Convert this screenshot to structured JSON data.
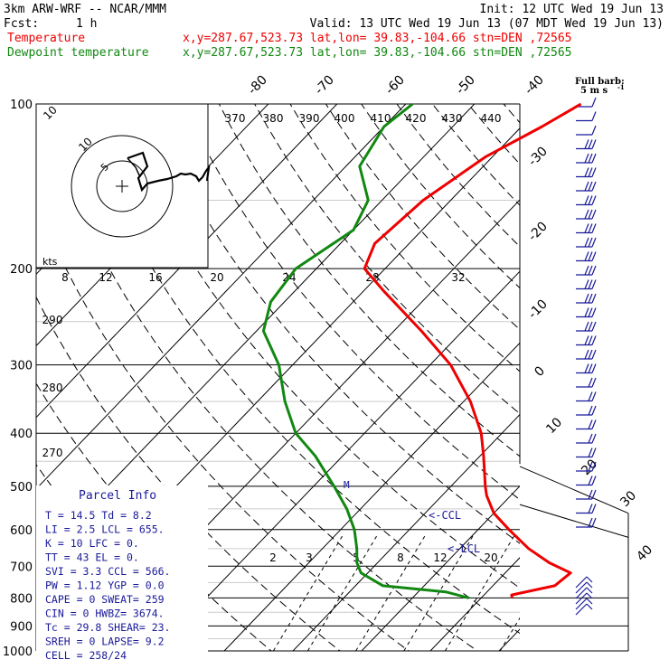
{
  "header": {
    "model": "3km ARW-WRF -- NCAR/MMM",
    "init": "Init: 12 UTC Wed 19 Jun 13",
    "fcst_label": "Fcst:",
    "fcst_value": "1 h",
    "valid": "Valid: 13 UTC Wed 19 Jun 13 (07 MDT Wed 19 Jun 13)",
    "temp_label": "Temperature",
    "temp_loc": "x,y=287.67,523.73   lat,lon= 39.83,-104.66  stn=DEN ,72565",
    "dew_label": "Dewpoint temperature",
    "dew_loc": "x,y=287.67,523.73   lat,lon= 39.83,-104.66  stn=DEN ,72565",
    "barb_key": "Full barb:",
    "barb_unit": "5 m s",
    "barb_unit_sup": "-1"
  },
  "colors": {
    "temperature": "#ee0000",
    "dewpoint": "#118811",
    "grid": "#000000",
    "annotation": "#1a1a9a",
    "barb": "#1a1a9a"
  },
  "axes": {
    "pressure_levels": [
      "100",
      "200",
      "300",
      "400",
      "500",
      "600",
      "700",
      "800",
      "900",
      "1000"
    ],
    "temp_isotherm_labels": [
      "-80",
      "-70",
      "-60",
      "-50",
      "-40",
      "-30",
      "-20",
      "-10",
      "0",
      "10",
      "20",
      "30",
      "40"
    ],
    "theta_labels": [
      "370",
      "380",
      "390",
      "400",
      "410",
      "420",
      "430",
      "440"
    ],
    "theta_left_labels": [
      "290",
      "280",
      "270"
    ],
    "mixing_ratio_labels": [
      "2",
      "3",
      "5",
      "8",
      "12",
      "20"
    ],
    "hodo_labels": [
      "8",
      "12",
      "16",
      "20",
      "24",
      "28",
      "32"
    ],
    "hodo_kts": "kts",
    "hodo_rings": [
      "5",
      "10"
    ]
  },
  "annotations": {
    "ccl": "<-CCL",
    "lcl": "<-LCL",
    "m_marker": "M"
  },
  "parcel_info": {
    "title": "Parcel Info",
    "rows": [
      "T  =   14.5  Td =   8.2",
      "LI =    2.5  LCL =  655.",
      "K  =     10  LFC =    0.",
      "TT =     43  EL  =    0.",
      "SVI =   3.3  CCL =  566.",
      "PW =   1.12  YGP =   0.0",
      "CAPE =    0  SWEAT=  259",
      "CIN =     0  HWBZ= 3674.",
      "Tc =   29.8  SHEAR=  23.",
      "SREH =    0  LAPSE=  9.2",
      "CELL = 258/24"
    ]
  },
  "chart_data": {
    "type": "line",
    "title": "",
    "xlabel": "",
    "ylabel": "",
    "y_scale": "log-pressure (hPa)",
    "ylim": [
      1000,
      100
    ],
    "series": [
      {
        "name": "Temperature",
        "pressure": [
          800,
          790,
          760,
          720,
          690,
          650,
          600,
          560,
          520,
          500,
          440,
          400,
          350,
          300,
          260,
          220,
          200,
          180,
          150,
          125,
          110,
          100
        ],
        "temperature": [
          14.5,
          14.0,
          19.0,
          19.5,
          15.0,
          10.0,
          4.5,
          0.0,
          -3.5,
          -5.0,
          -9.5,
          -13.0,
          -19.0,
          -27.0,
          -36.0,
          -47.0,
          -53.0,
          -55.0,
          -54.0,
          -51.0,
          -47.0,
          -44.5
        ]
      },
      {
        "name": "Dewpoint temperature",
        "pressure": [
          800,
          780,
          760,
          720,
          690,
          650,
          600,
          550,
          500,
          440,
          400,
          350,
          300,
          260,
          230,
          200,
          170,
          150,
          130,
          110,
          100
        ],
        "dewpoint": [
          8.2,
          4.0,
          -6.0,
          -11.0,
          -13.0,
          -15.0,
          -18.0,
          -22.0,
          -27.0,
          -34.0,
          -40.0,
          -46.0,
          -52.0,
          -59.0,
          -62.0,
          -63.0,
          -60.0,
          -62.0,
          -68.0,
          -70.0,
          -69.0
        ]
      }
    ],
    "wind_barbs_note": "wind barbs along right edge",
    "hodograph": "inset upper-left"
  }
}
